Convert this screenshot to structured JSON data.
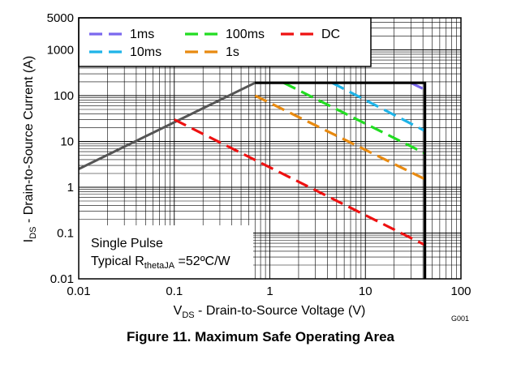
{
  "figure_caption": "Figure 11. Maximum Safe Operating Area",
  "figure_code": "G001",
  "chart_data": {
    "type": "line",
    "x_scale": "log",
    "y_scale": "log",
    "xlim": [
      0.01,
      100
    ],
    "ylim": [
      0.01,
      5000
    ],
    "xlabel_main": "V",
    "xlabel_sub": "DS",
    "xlabel_rest": " - Drain-to-Source Voltage (V)",
    "ylabel_main": "I",
    "ylabel_sub": "DS",
    "ylabel_rest": " - Drain-to-Source Current (A)",
    "x_ticks": [
      {
        "value": 0.01,
        "label": "0.01"
      },
      {
        "value": 0.1,
        "label": "0.1"
      },
      {
        "value": 1,
        "label": "1"
      },
      {
        "value": 10,
        "label": "10"
      },
      {
        "value": 100,
        "label": "100"
      }
    ],
    "y_ticks": [
      {
        "value": 0.01,
        "label": "0.01"
      },
      {
        "value": 0.1,
        "label": "0.1"
      },
      {
        "value": 1,
        "label": "1"
      },
      {
        "value": 10,
        "label": "10"
      },
      {
        "value": 100,
        "label": "100"
      },
      {
        "value": 1000,
        "label": "1000"
      },
      {
        "value": 5000,
        "label": "5000"
      }
    ],
    "grid": true,
    "legend_placement": "top-left",
    "annotation_line1": "Single Pulse",
    "annotation_line2_prefix": "Typical R",
    "annotation_line2_sub": "thetaJA",
    "annotation_line2_suffix": " =52ºC/W",
    "boundary": {
      "color": "#000000",
      "points": [
        [
          0.7,
          190
        ],
        [
          42,
          190
        ],
        [
          42,
          0.01
        ]
      ]
    },
    "rdson_limit": {
      "color": "#555555",
      "points": [
        [
          0.01,
          2.5
        ],
        [
          0.7,
          190
        ]
      ]
    },
    "series": [
      {
        "name": "1ms",
        "color": "#7b68ee",
        "x": [
          30,
          42
        ],
        "y": [
          190,
          135
        ]
      },
      {
        "name": "10ms",
        "color": "#1fb4e8",
        "x": [
          4.5,
          42
        ],
        "y": [
          190,
          17
        ]
      },
      {
        "name": "100ms",
        "color": "#22dd22",
        "x": [
          1.4,
          42
        ],
        "y": [
          190,
          5.5
        ]
      },
      {
        "name": "1s",
        "color": "#e88a10",
        "x": [
          0.7,
          42
        ],
        "y": [
          100,
          1.5
        ]
      },
      {
        "name": "DC",
        "color": "#ee1111",
        "x": [
          0.1,
          42
        ],
        "y": [
          30,
          0.055
        ]
      }
    ]
  }
}
